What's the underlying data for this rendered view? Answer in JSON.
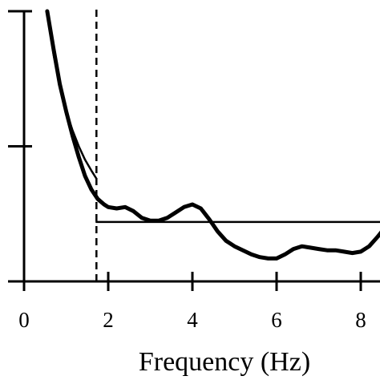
{
  "chart_data": {
    "type": "line",
    "title": "",
    "xlabel": "Frequency  (Hz)",
    "ylabel": "",
    "xlim": [
      0,
      8.5
    ],
    "ylim": [
      0,
      100
    ],
    "x_ticks": [
      0,
      2,
      4,
      6,
      8
    ],
    "y_ticks": [
      0,
      50,
      100
    ],
    "grid": false,
    "legend": "none",
    "series": [
      {
        "style": "thick",
        "x": [
          0.55,
          0.7,
          0.85,
          1.0,
          1.15,
          1.3,
          1.45,
          1.6,
          1.75,
          1.9,
          2.0,
          2.2,
          2.4,
          2.6,
          2.8,
          3.0,
          3.2,
          3.4,
          3.6,
          3.8,
          4.0,
          4.2,
          4.4,
          4.6,
          4.8,
          5.0,
          5.2,
          5.4,
          5.6,
          5.8,
          6.0,
          6.2,
          6.4,
          6.6,
          6.8,
          7.0,
          7.2,
          7.4,
          7.6,
          7.8,
          8.0,
          8.2,
          8.4,
          8.5
        ],
        "y": [
          100,
          86,
          73,
          63,
          54,
          46,
          39,
          34,
          30.5,
          28.5,
          27.5,
          27,
          27.5,
          26,
          23.5,
          22.5,
          22.5,
          23.5,
          25.5,
          27.5,
          28.5,
          27,
          23,
          18.5,
          15,
          13,
          11.5,
          10,
          9,
          8.5,
          8.5,
          10,
          12,
          13,
          12.5,
          12,
          11.5,
          11.5,
          11,
          10.5,
          11,
          13,
          16.5,
          18.5
        ]
      },
      {
        "style": "thin",
        "x": [
          0.55,
          0.7,
          0.85,
          1.0,
          1.15,
          1.3,
          1.45,
          1.6,
          1.72
        ],
        "y": [
          100,
          84,
          72,
          63,
          56,
          50,
          45,
          41,
          38
        ]
      },
      {
        "style": "thin",
        "x": [
          1.72,
          8.5
        ],
        "y": [
          22,
          22
        ]
      }
    ],
    "vline": {
      "x": 1.72,
      "style": "dashed"
    }
  }
}
